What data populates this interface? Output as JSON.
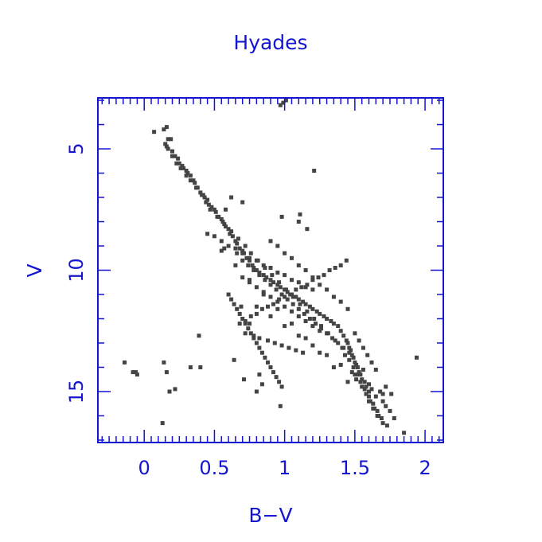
{
  "chart_data": {
    "type": "scatter",
    "title": "Hyades",
    "xlabel": "B−V",
    "ylabel": "V",
    "xlim": [
      -0.33,
      2.13
    ],
    "ylim": [
      17.1,
      2.9
    ],
    "y_inverted": true,
    "xticks": [
      "0",
      "0.5",
      "1",
      "1.5",
      "2"
    ],
    "yticks": [
      "5",
      "10",
      "15"
    ],
    "grid": false,
    "legend": "none",
    "colors": {
      "axis": "#1515d0",
      "points": "#444444",
      "background": "#ffffff"
    },
    "x": [
      0.07,
      0.14,
      0.16,
      0.17,
      0.15,
      0.16,
      0.17,
      0.19,
      0.2,
      0.22,
      0.24,
      0.25,
      0.27,
      0.28,
      0.3,
      0.31,
      0.33,
      0.35,
      0.36,
      0.38,
      0.4,
      0.42,
      0.43,
      0.45,
      0.46,
      0.48,
      0.5,
      0.51,
      0.53,
      0.55,
      0.56,
      0.58,
      0.6,
      0.61,
      0.63,
      0.65,
      0.66,
      0.68,
      0.7,
      0.71,
      0.73,
      0.75,
      0.77,
      0.78,
      0.8,
      0.82,
      0.85,
      0.87,
      0.9,
      0.92,
      0.95,
      0.97,
      1.0,
      1.02,
      1.05,
      1.08,
      1.1,
      1.13,
      1.15,
      1.18,
      1.2,
      1.23,
      1.25,
      1.28,
      1.3,
      1.33,
      1.35,
      1.38,
      1.4,
      1.42,
      1.44,
      1.45,
      1.46,
      1.47,
      1.48,
      1.49,
      1.5,
      1.51,
      1.52,
      1.53,
      1.54,
      1.55,
      1.56,
      1.57,
      1.58,
      1.6,
      1.62,
      1.65,
      1.68,
      1.7,
      1.72,
      1.75,
      1.78,
      1.85,
      1.94,
      0.2,
      0.23,
      0.26,
      0.3,
      0.33,
      0.37,
      0.41,
      0.44,
      0.47,
      0.52,
      0.57,
      0.62,
      0.67,
      0.72,
      0.76,
      0.81,
      0.86,
      0.91,
      0.96,
      1.01,
      1.06,
      1.11,
      1.16,
      1.21,
      1.26,
      1.31,
      1.36,
      1.41,
      1.43,
      1.46,
      1.49,
      1.52,
      1.54,
      1.57,
      1.6,
      1.63,
      1.66,
      1.69,
      1.73,
      0.45,
      0.5,
      0.55,
      0.6,
      0.65,
      0.7,
      0.75,
      0.8,
      0.85,
      0.9,
      0.95,
      1.0,
      1.05,
      1.1,
      1.15,
      1.2,
      0.9,
      0.95,
      1.0,
      1.05,
      1.1,
      1.15,
      1.2,
      1.25,
      1.3,
      1.35,
      1.4,
      1.45,
      0.7,
      0.75,
      0.8,
      0.85,
      0.9,
      0.95,
      1.0,
      1.05,
      1.1,
      1.15,
      1.2,
      1.25,
      0.72,
      0.78,
      0.82,
      0.88,
      0.93,
      0.98,
      1.03,
      1.08,
      1.13,
      0.6,
      0.62,
      0.64,
      0.66,
      0.68,
      0.7,
      0.72,
      0.74,
      0.76,
      0.78,
      0.8,
      0.82,
      0.84,
      0.86,
      0.88,
      0.9,
      0.92,
      0.94,
      0.96,
      0.98,
      0.7,
      0.74,
      0.78,
      0.82,
      0.86,
      0.9,
      0.94,
      0.98,
      1.02,
      1.06,
      1.1,
      1.14,
      1.18,
      1.22,
      1.26,
      1.3,
      1.34,
      1.38,
      1.42,
      1.46,
      0.55,
      0.65,
      0.75,
      0.85,
      0.95,
      1.05,
      1.15,
      1.25,
      1.35,
      1.45,
      0.8,
      0.9,
      1.0,
      1.1,
      1.2,
      1.3,
      1.4,
      1.5,
      1.6,
      1.7,
      0.68,
      0.72,
      0.76,
      0.8,
      0.84,
      0.88,
      0.92,
      0.96,
      1.0,
      1.04,
      1.08,
      1.12,
      1.16,
      1.2,
      1.24,
      1.28,
      1.32,
      1.36,
      1.4,
      1.44,
      1.5,
      1.53,
      1.56,
      1.59,
      1.62,
      1.65,
      1.48,
      1.51,
      1.55,
      1.58,
      1.61,
      1.64,
      1.67,
      1.72,
      1.76,
      1.6,
      1.63,
      1.66,
      1.7,
      -0.14,
      -0.08,
      -0.06,
      -0.05,
      0.14,
      0.16,
      0.18,
      0.22,
      0.33,
      0.4,
      0.13,
      0.97,
      0.99,
      1.01,
      1.21,
      0.98,
      1.11,
      1.1,
      1.16,
      0.39,
      0.57,
      0.66,
      0.69,
      0.75,
      0.82,
      0.84,
      0.64,
      0.71,
      0.8,
      0.97,
      0.58,
      0.62,
      0.7
    ],
    "y": [
      4.3,
      4.2,
      4.1,
      4.6,
      4.8,
      4.9,
      5.0,
      4.6,
      5.1,
      5.3,
      5.4,
      5.6,
      5.7,
      5.8,
      5.9,
      6.0,
      6.1,
      6.3,
      6.4,
      6.6,
      6.8,
      6.9,
      7.0,
      7.1,
      7.3,
      7.4,
      7.5,
      7.6,
      7.8,
      7.9,
      8.0,
      8.2,
      8.3,
      8.5,
      8.6,
      8.8,
      8.9,
      9.1,
      9.2,
      9.3,
      9.5,
      9.6,
      9.8,
      9.9,
      10.0,
      10.1,
      10.2,
      10.3,
      10.4,
      10.5,
      10.6,
      10.7,
      10.8,
      10.9,
      11.0,
      11.1,
      11.2,
      11.3,
      11.4,
      11.5,
      11.6,
      11.7,
      11.8,
      11.9,
      12.0,
      12.1,
      12.2,
      12.3,
      12.5,
      12.7,
      12.9,
      13.0,
      13.2,
      13.3,
      13.5,
      13.6,
      13.8,
      13.9,
      14.0,
      14.2,
      14.3,
      14.5,
      14.1,
      14.6,
      14.8,
      15.0,
      14.9,
      15.2,
      15.0,
      15.4,
      15.6,
      15.8,
      16.1,
      16.7,
      13.6,
      5.3,
      5.6,
      5.8,
      6.1,
      6.3,
      6.6,
      6.9,
      7.2,
      7.5,
      7.8,
      8.1,
      8.4,
      8.7,
      9.0,
      9.3,
      9.6,
      9.9,
      10.2,
      10.5,
      10.8,
      11.1,
      11.4,
      11.7,
      12.0,
      12.3,
      12.6,
      12.9,
      13.2,
      13.5,
      13.7,
      14.0,
      14.3,
      14.6,
      14.9,
      15.2,
      15.5,
      15.8,
      16.1,
      16.4,
      8.5,
      8.6,
      8.8,
      9.0,
      9.1,
      9.3,
      9.5,
      9.6,
      9.8,
      9.9,
      10.1,
      10.2,
      10.4,
      10.5,
      10.7,
      10.8,
      8.8,
      9.0,
      9.3,
      9.5,
      9.8,
      10.0,
      10.3,
      10.6,
      10.8,
      11.1,
      11.3,
      11.6,
      10.3,
      10.5,
      10.7,
      10.9,
      11.1,
      11.3,
      11.5,
      11.7,
      11.9,
      12.1,
      12.3,
      12.5,
      12.6,
      12.7,
      12.8,
      12.9,
      13.0,
      13.1,
      13.2,
      13.3,
      13.4,
      11.0,
      11.2,
      11.4,
      11.6,
      11.8,
      12.0,
      12.2,
      12.4,
      12.6,
      12.8,
      13.0,
      13.2,
      13.4,
      13.6,
      13.8,
      14.0,
      14.2,
      14.4,
      14.6,
      14.8,
      9.6,
      9.8,
      10.0,
      10.2,
      10.4,
      10.6,
      10.8,
      11.0,
      11.2,
      11.4,
      11.6,
      11.8,
      12.0,
      12.2,
      12.4,
      12.6,
      12.8,
      13.0,
      13.2,
      13.4,
      9.2,
      9.8,
      10.4,
      11.0,
      11.6,
      12.2,
      12.8,
      13.4,
      14.0,
      14.6,
      11.5,
      11.9,
      12.3,
      12.7,
      13.1,
      13.5,
      13.9,
      14.3,
      14.7,
      15.1,
      12.2,
      12.1,
      11.9,
      11.8,
      11.6,
      11.5,
      11.4,
      11.2,
      11.1,
      11.0,
      10.8,
      10.7,
      10.6,
      10.4,
      10.3,
      10.2,
      10.0,
      9.9,
      9.8,
      9.6,
      12.6,
      12.9,
      13.2,
      13.5,
      13.8,
      14.1,
      14.2,
      14.5,
      14.8,
      15.1,
      15.4,
      15.7,
      16.0,
      14.8,
      15.1,
      15.4,
      15.7,
      16.0,
      16.3,
      13.8,
      14.2,
      14.2,
      14.3,
      13.8,
      14.2,
      15.0,
      14.9,
      14.0,
      14.0,
      16.3,
      3.2,
      3.1,
      3.0,
      5.9,
      7.8,
      7.7,
      8.0,
      8.3,
      12.7,
      9.1,
      9.3,
      11.5,
      12.2,
      14.3,
      14.7,
      13.7,
      14.5,
      15.0,
      15.6,
      7.5,
      7.0,
      7.2
    ]
  }
}
